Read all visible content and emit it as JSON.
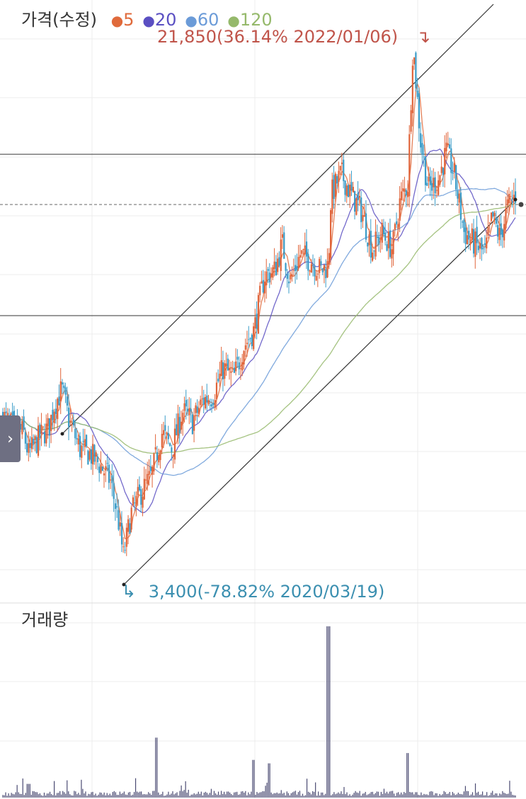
{
  "header": {
    "price_title": "가격(수정)",
    "ma_legend": [
      {
        "label": "5",
        "color": "#e06a3b"
      },
      {
        "label": "20",
        "color": "#5a4fc2"
      },
      {
        "label": "60",
        "color": "#6b9bd8"
      },
      {
        "label": "120",
        "color": "#95b96b"
      }
    ]
  },
  "annotations": {
    "high": {
      "text": "21,850(36.14% 2022/01/06)",
      "color": "#c0544a",
      "marker": "↴"
    },
    "low": {
      "text": "3,400(-78.82% 2020/03/19)",
      "color": "#3b8fb0",
      "marker": "↳"
    }
  },
  "volume_panel": {
    "title": "거래량"
  },
  "side_tab": {
    "icon": "chevron-right-icon",
    "glyph": "›"
  },
  "colors": {
    "candle_up": "#e0643a",
    "candle_down": "#3a9cc8",
    "volume": "#4a4a72",
    "grid": "#ececec",
    "channel": "#333333",
    "current_price_line": "#666666"
  },
  "chart_data": {
    "type": "line",
    "title": "가격(수정)",
    "x_range": [
      "2019",
      "2022"
    ],
    "series_high": {
      "value": 21850,
      "change_pct": 36.14,
      "date": "2022/01/06"
    },
    "series_low": {
      "value": 3400,
      "change_pct": -78.82,
      "date": "2020/03/19"
    },
    "moving_averages": [
      "5",
      "20",
      "60",
      "120"
    ],
    "price_path": [
      [
        0,
        0.31
      ],
      [
        0.02,
        0.29
      ],
      [
        0.04,
        0.28
      ],
      [
        0.05,
        0.24
      ],
      [
        0.07,
        0.27
      ],
      [
        0.09,
        0.29
      ],
      [
        0.1,
        0.33
      ],
      [
        0.115,
        0.36
      ],
      [
        0.13,
        0.3
      ],
      [
        0.15,
        0.25
      ],
      [
        0.17,
        0.24
      ],
      [
        0.19,
        0.22
      ],
      [
        0.21,
        0.19
      ],
      [
        0.225,
        0.12
      ],
      [
        0.235,
        0.05
      ],
      [
        0.25,
        0.13
      ],
      [
        0.27,
        0.17
      ],
      [
        0.29,
        0.2
      ],
      [
        0.31,
        0.28
      ],
      [
        0.33,
        0.25
      ],
      [
        0.35,
        0.32
      ],
      [
        0.37,
        0.3
      ],
      [
        0.39,
        0.34
      ],
      [
        0.41,
        0.35
      ],
      [
        0.43,
        0.4
      ],
      [
        0.45,
        0.38
      ],
      [
        0.47,
        0.44
      ],
      [
        0.49,
        0.47
      ],
      [
        0.51,
        0.57
      ],
      [
        0.53,
        0.58
      ],
      [
        0.545,
        0.63
      ],
      [
        0.56,
        0.56
      ],
      [
        0.58,
        0.61
      ],
      [
        0.6,
        0.6
      ],
      [
        0.62,
        0.58
      ],
      [
        0.635,
        0.59
      ],
      [
        0.64,
        0.72
      ],
      [
        0.66,
        0.76
      ],
      [
        0.68,
        0.72
      ],
      [
        0.7,
        0.69
      ],
      [
        0.72,
        0.62
      ],
      [
        0.74,
        0.65
      ],
      [
        0.76,
        0.62
      ],
      [
        0.775,
        0.71
      ],
      [
        0.79,
        0.74
      ],
      [
        0.8,
        1.0
      ],
      [
        0.815,
        0.82
      ],
      [
        0.83,
        0.73
      ],
      [
        0.85,
        0.75
      ],
      [
        0.865,
        0.8
      ],
      [
        0.88,
        0.76
      ],
      [
        0.9,
        0.65
      ],
      [
        0.92,
        0.63
      ],
      [
        0.94,
        0.61
      ],
      [
        0.955,
        0.68
      ],
      [
        0.97,
        0.64
      ],
      [
        0.985,
        0.7
      ],
      [
        1.0,
        0.72
      ]
    ],
    "volume_path": [
      [
        0.05,
        0.08
      ],
      [
        0.3,
        0.35
      ],
      [
        0.49,
        0.22
      ],
      [
        0.52,
        0.2
      ],
      [
        0.635,
        1.0
      ],
      [
        0.79,
        0.26
      ]
    ]
  }
}
